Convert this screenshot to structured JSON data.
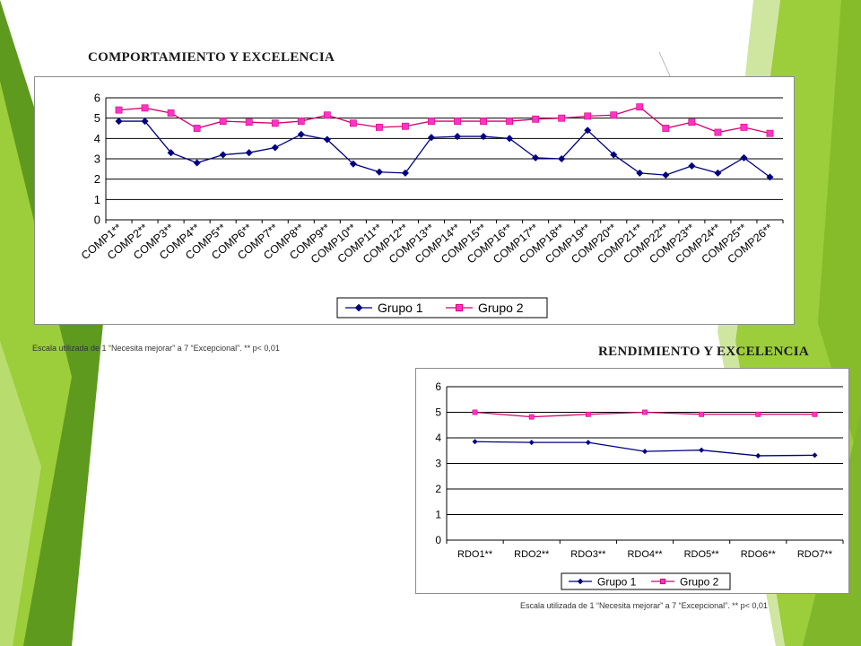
{
  "theme": {
    "green_dark": "#5e9a1e",
    "green_light": "#9ccd3a",
    "green_mid": "#86bb2a",
    "series1_color": "#000080",
    "series2_color": "#d6006e",
    "series2_marker": "#ff33cc"
  },
  "top": {
    "title": "COMPORTAMIENTO Y EXCELENCIA",
    "note": "Escala utilizada de 1 “Necesita mejorar” a 7 “Excepcional”. ** p< 0,01"
  },
  "bottom": {
    "title": "RENDIMIENTO Y EXCELENCIA",
    "note": "Escala utilizada de 1 “Necesita mejorar” a 7 “Excepcional”. ** p< 0,01"
  },
  "chart_data": [
    {
      "type": "line",
      "title": "COMPORTAMIENTO Y EXCELENCIA",
      "categories": [
        "COMP1**",
        "COMP2**",
        "COMP3**",
        "COMP4**",
        "COMP5**",
        "COMP6**",
        "COMP7**",
        "COMP8**",
        "COMP9**",
        "COMP10**",
        "COMP11**",
        "COMP12**",
        "COMP13**",
        "COMP14**",
        "COMP15**",
        "COMP16**",
        "COMP17**",
        "COMP18**",
        "COMP19**",
        "COMP20**",
        "COMP21**",
        "COMP22**",
        "COMP23**",
        "COMP24**",
        "COMP25**",
        "COMP26**"
      ],
      "series": [
        {
          "name": "Grupo 1",
          "values": [
            4.85,
            4.85,
            3.3,
            2.8,
            3.2,
            3.3,
            3.55,
            4.2,
            3.95,
            2.75,
            2.35,
            2.3,
            4.05,
            4.1,
            4.1,
            4.0,
            3.05,
            3.0,
            4.4,
            3.2,
            2.3,
            2.2,
            2.65,
            2.3,
            3.05,
            2.1
          ]
        },
        {
          "name": "Grupo 2",
          "values": [
            5.4,
            5.5,
            5.25,
            4.5,
            4.85,
            4.8,
            4.75,
            4.85,
            5.15,
            4.75,
            4.55,
            4.6,
            4.85,
            4.85,
            4.85,
            4.85,
            4.95,
            5.0,
            5.1,
            5.15,
            5.55,
            4.5,
            4.8,
            4.3,
            4.55,
            4.25
          ]
        }
      ],
      "ylim": [
        0,
        6
      ],
      "yticks": [
        "0",
        "1",
        "2",
        "3",
        "4",
        "5",
        "6"
      ],
      "grid": "horizontal",
      "legend": "bottom"
    },
    {
      "type": "line",
      "title": "RENDIMIENTO Y EXCELENCIA",
      "categories": [
        "RDO1**",
        "RDO2**",
        "RDO3**",
        "RDO4**",
        "RDO5**",
        "RDO6**",
        "RDO7**"
      ],
      "series": [
        {
          "name": "Grupo 1",
          "values": [
            3.85,
            3.82,
            3.82,
            3.47,
            3.52,
            3.3,
            3.32
          ]
        },
        {
          "name": "Grupo 2",
          "values": [
            5.0,
            4.82,
            4.92,
            5.0,
            4.92,
            4.92,
            4.92
          ]
        }
      ],
      "ylim": [
        0,
        6
      ],
      "yticks": [
        "0",
        "1",
        "2",
        "3",
        "4",
        "5",
        "6"
      ],
      "grid": "horizontal",
      "legend": "bottom"
    }
  ]
}
